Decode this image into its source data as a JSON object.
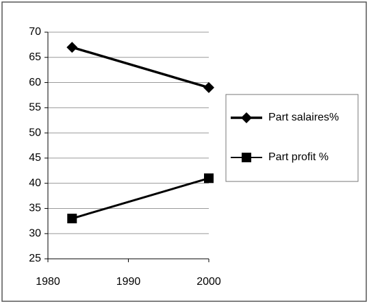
{
  "chart_data": {
    "type": "line",
    "x": [
      1983,
      2000
    ],
    "series": [
      {
        "name": "Part salaires%",
        "color": "#000000",
        "marker": "diamond",
        "values": [
          67,
          59
        ]
      },
      {
        "name": "Part profit %",
        "color": "#000000",
        "marker": "square",
        "values": [
          33,
          41
        ]
      }
    ],
    "xlim": [
      1980,
      2000
    ],
    "xticks": [
      1980,
      1990,
      2000
    ],
    "ylim": [
      25,
      70
    ],
    "yticks": [
      25,
      30,
      35,
      40,
      45,
      50,
      55,
      60,
      65,
      70
    ],
    "grid": true,
    "legend": "right"
  }
}
